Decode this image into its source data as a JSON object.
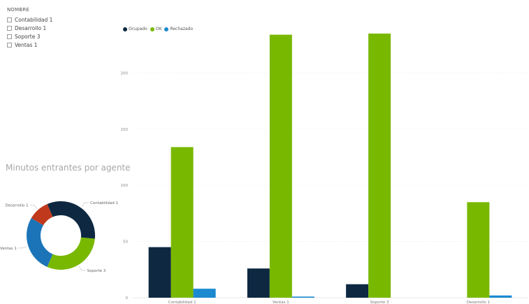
{
  "slicer": {
    "title": "NOMBRE",
    "items": [
      {
        "label": "Contabilidad 1"
      },
      {
        "label": "Desarrollo 1"
      },
      {
        "label": "Soporte 3"
      },
      {
        "label": "Ventas 1"
      }
    ]
  },
  "donut": {
    "title": "Minutos entrantes por agente",
    "slices": [
      {
        "label": "Contabilidad 1",
        "value": 33,
        "color": "#0e2841"
      },
      {
        "label": "Soporte 3",
        "value": 30,
        "color": "#79b800"
      },
      {
        "label": "Ventas 1",
        "value": 27,
        "color": "#1b74b8"
      },
      {
        "label": "Desarrollo 1",
        "value": 10,
        "color": "#c0391c"
      }
    ]
  },
  "chart_data": {
    "type": "bar",
    "categories": [
      "Contabilidad 1",
      "Ventas 1",
      "Soporte 3",
      "Desarrollo 1"
    ],
    "series": [
      {
        "name": "Ocupado",
        "color": "#0e2841",
        "values": [
          45,
          26,
          12,
          0
        ]
      },
      {
        "name": "OK",
        "color": "#79b800",
        "values": [
          134,
          234,
          235,
          85
        ]
      },
      {
        "name": "Rechazado",
        "color": "#1b8ad0",
        "values": [
          8,
          1,
          0,
          2
        ]
      }
    ],
    "yticks": [
      0,
      50,
      100,
      150,
      200
    ],
    "ylim": [
      0,
      240
    ],
    "grid": true,
    "legend": "top-left"
  }
}
